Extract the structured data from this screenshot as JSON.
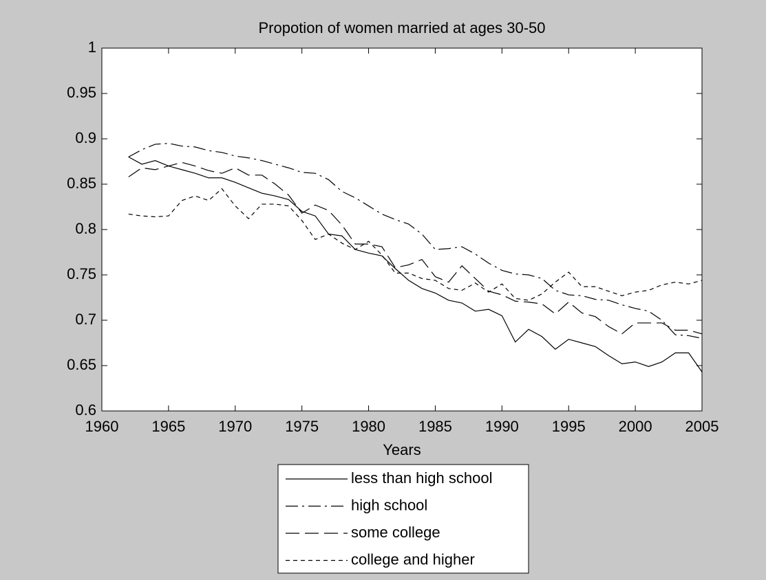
{
  "chart_data": {
    "type": "line",
    "title": "Propotion of women married at ages 30-50",
    "x_label": "Years",
    "x": [
      1962,
      1963,
      1964,
      1965,
      1966,
      1967,
      1968,
      1969,
      1970,
      1971,
      1972,
      1973,
      1974,
      1975,
      1976,
      1977,
      1978,
      1979,
      1980,
      1981,
      1982,
      1983,
      1984,
      1985,
      1986,
      1987,
      1988,
      1989,
      1990,
      1991,
      1992,
      1993,
      1994,
      1995,
      1996,
      1997,
      1998,
      1999,
      2000,
      2001,
      2002,
      2003,
      2004,
      2005
    ],
    "series": [
      {
        "name": "less than high school",
        "color": "#000000",
        "style": "-",
        "values": [
          0.88,
          0.872,
          0.876,
          0.87,
          0.866,
          0.862,
          0.857,
          0.857,
          0.852,
          0.846,
          0.84,
          0.837,
          0.833,
          0.82,
          0.815,
          0.795,
          0.793,
          0.778,
          0.774,
          0.771,
          0.757,
          0.744,
          0.735,
          0.73,
          0.722,
          0.719,
          0.71,
          0.712,
          0.705,
          0.676,
          0.69,
          0.682,
          0.668,
          0.679,
          0.675,
          0.671,
          0.661,
          0.652,
          0.654,
          0.649,
          0.654,
          0.664,
          0.664,
          0.643
        ]
      },
      {
        "name": "high school",
        "color": "#000000",
        "style": "-.",
        "values": [
          0.88,
          0.888,
          0.894,
          0.895,
          0.892,
          0.891,
          0.887,
          0.885,
          0.881,
          0.879,
          0.876,
          0.872,
          0.868,
          0.863,
          0.862,
          0.855,
          0.842,
          0.835,
          0.826,
          0.817,
          0.811,
          0.806,
          0.795,
          0.778,
          0.779,
          0.781,
          0.773,
          0.763,
          0.755,
          0.751,
          0.75,
          0.746,
          0.733,
          0.728,
          0.727,
          0.723,
          0.722,
          0.717,
          0.713,
          0.71,
          0.7,
          0.684,
          0.683,
          0.68
        ]
      },
      {
        "name": "some college",
        "color": "#000000",
        "style": "--",
        "values": [
          0.858,
          0.868,
          0.866,
          0.87,
          0.874,
          0.87,
          0.865,
          0.862,
          0.868,
          0.86,
          0.86,
          0.85,
          0.838,
          0.818,
          0.827,
          0.821,
          0.805,
          0.784,
          0.784,
          0.781,
          0.758,
          0.761,
          0.767,
          0.748,
          0.742,
          0.76,
          0.746,
          0.732,
          0.728,
          0.721,
          0.72,
          0.718,
          0.707,
          0.72,
          0.708,
          0.704,
          0.693,
          0.685,
          0.697,
          0.697,
          0.697,
          0.689,
          0.689,
          0.685
        ]
      },
      {
        "name": "college and higher",
        "color": "#000000",
        "style": ":",
        "values": [
          0.817,
          0.815,
          0.814,
          0.815,
          0.832,
          0.837,
          0.832,
          0.845,
          0.826,
          0.812,
          0.828,
          0.828,
          0.826,
          0.81,
          0.789,
          0.795,
          0.785,
          0.778,
          0.787,
          0.772,
          0.752,
          0.752,
          0.746,
          0.744,
          0.735,
          0.733,
          0.741,
          0.731,
          0.74,
          0.724,
          0.722,
          0.729,
          0.742,
          0.753,
          0.737,
          0.737,
          0.732,
          0.727,
          0.731,
          0.733,
          0.739,
          0.742,
          0.74,
          0.744
        ]
      }
    ],
    "xlim": [
      1960,
      2005
    ],
    "xticks": [
      1960,
      1965,
      1970,
      1975,
      1980,
      1985,
      1990,
      1995,
      2000,
      2005
    ],
    "ylim": [
      0.6,
      1
    ],
    "yticks": [
      0.6,
      0.65,
      0.7,
      0.75,
      0.8,
      0.85,
      0.9,
      0.95,
      1
    ],
    "grid": false,
    "legend": "south-outside"
  }
}
